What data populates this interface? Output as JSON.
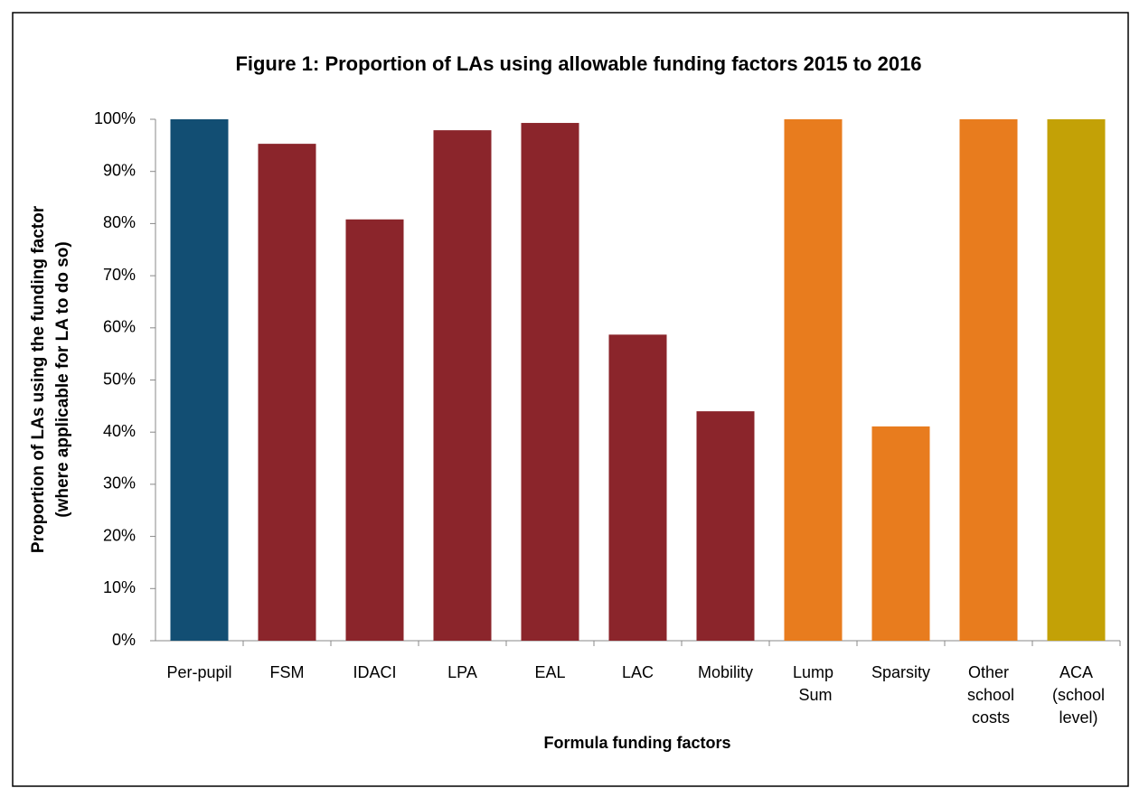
{
  "chart_data": {
    "type": "bar",
    "title": "Figure 1: Proportion of LAs using allowable funding factors 2015 to 2016",
    "x_label": "Formula funding factors",
    "y_label": [
      "Proportion of LAs using the funding factor",
      "(where applicable for LA to do so)"
    ],
    "categories": [
      "Per-pupil",
      "FSM",
      "IDACI",
      "LPA",
      "EAL",
      "LAC",
      "Mobility",
      "Lump Sum",
      "Sparsity",
      "Other school costs",
      "ACA (school level)"
    ],
    "values": [
      100,
      95.3,
      80.8,
      97.9,
      99.3,
      58.7,
      44,
      100,
      41.1,
      100,
      100
    ],
    "colors": [
      "#124e73",
      "#8b252b",
      "#8b252b",
      "#8b252b",
      "#8b252b",
      "#8b252b",
      "#8b252b",
      "#e87c1e",
      "#e87c1e",
      "#e87c1e",
      "#c3a106"
    ],
    "ylim": [
      0,
      100
    ],
    "yticks": [
      {
        "value": 0,
        "label": "0%"
      },
      {
        "value": 10,
        "label": "10%"
      },
      {
        "value": 20,
        "label": "20%"
      },
      {
        "value": 30,
        "label": "30%"
      },
      {
        "value": 40,
        "label": "40%"
      },
      {
        "value": 50,
        "label": "50%"
      },
      {
        "value": 60,
        "label": "60%"
      },
      {
        "value": 70,
        "label": "70%"
      },
      {
        "value": 80,
        "label": "80%"
      },
      {
        "value": 90,
        "label": "90%"
      },
      {
        "value": 100,
        "label": "100%"
      }
    ],
    "grid": false
  }
}
